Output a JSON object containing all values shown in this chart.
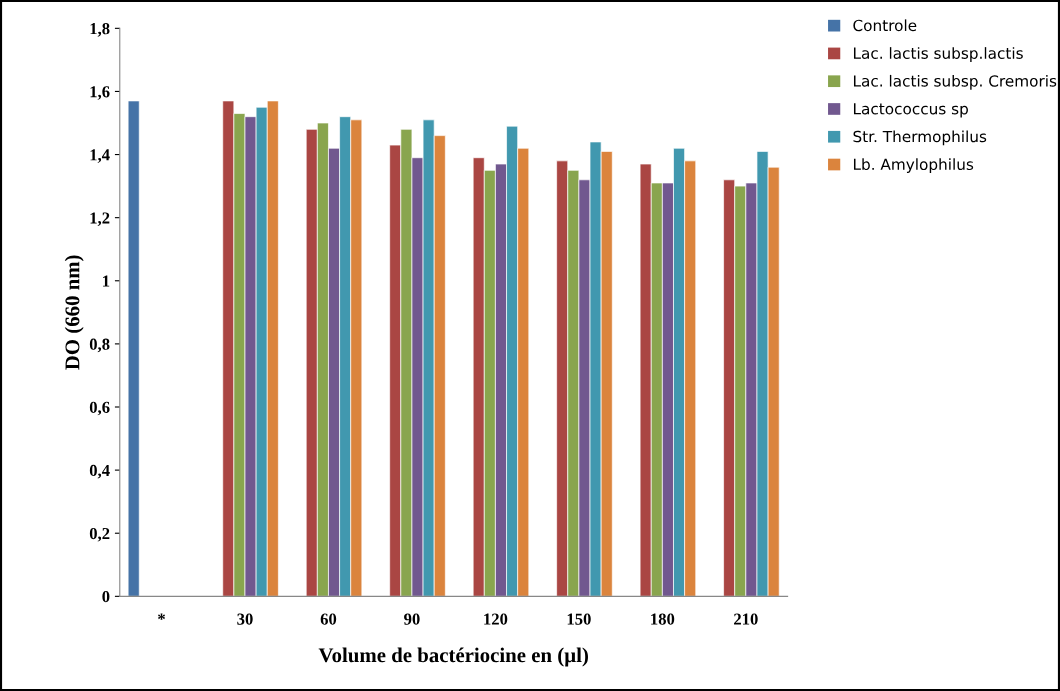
{
  "chart_data": {
    "type": "bar",
    "xlabel": "Volume de bactériocine en (µl)",
    "ylabel": "DO (660 nm)",
    "categories": [
      "*",
      "30",
      "60",
      "90",
      "120",
      "150",
      "180",
      "210"
    ],
    "series": [
      {
        "name": "Controle",
        "color": "#4573a7",
        "values": [
          1.57,
          null,
          null,
          null,
          null,
          null,
          null,
          null
        ]
      },
      {
        "name": "Lac. lactis subsp.lactis",
        "color": "#aa4643",
        "values": [
          null,
          1.57,
          1.48,
          1.43,
          1.39,
          1.38,
          1.37,
          1.32
        ]
      },
      {
        "name": "Lac. lactis subsp. Cremoris",
        "color": "#89a54e",
        "values": [
          null,
          1.53,
          1.5,
          1.48,
          1.35,
          1.35,
          1.31,
          1.3
        ]
      },
      {
        "name": "Lactococcus sp",
        "color": "#71588f",
        "values": [
          null,
          1.52,
          1.42,
          1.39,
          1.37,
          1.32,
          1.31,
          1.31
        ]
      },
      {
        "name": "Str. Thermophilus",
        "color": "#4198af",
        "values": [
          null,
          1.55,
          1.52,
          1.51,
          1.49,
          1.44,
          1.42,
          1.41
        ]
      },
      {
        "name": "Lb. Amylophilus",
        "color": "#db843d",
        "values": [
          null,
          1.57,
          1.51,
          1.46,
          1.42,
          1.41,
          1.38,
          1.36
        ]
      }
    ],
    "ylim": [
      0,
      1.8
    ],
    "yticks": [
      0,
      {
        "value": 0.2,
        "label": "0,2"
      },
      {
        "value": 0.4,
        "label": "0,4"
      },
      {
        "value": 0.6,
        "label": "0,6"
      },
      {
        "value": 0.8,
        "label": "0,8"
      },
      1,
      {
        "value": 1.2,
        "label": "1,2"
      },
      {
        "value": 1.4,
        "label": "1,4"
      },
      {
        "value": 1.6,
        "label": "1,6"
      },
      {
        "value": 1.8,
        "label": "1,8"
      }
    ],
    "grid": false,
    "legend": "top right"
  }
}
